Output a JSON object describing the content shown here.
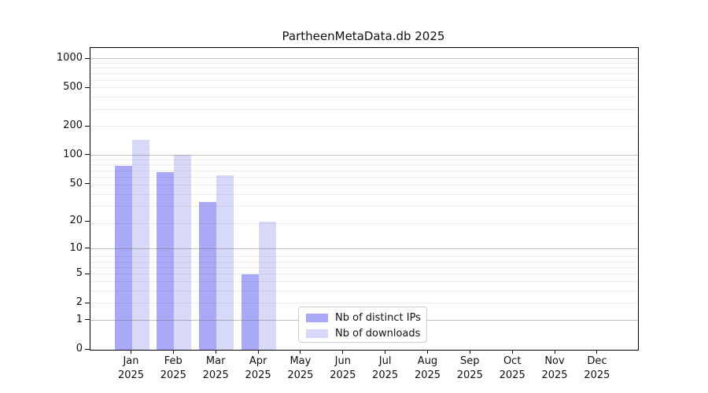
{
  "chart_data": {
    "type": "bar",
    "title": "PartheenMetaData.db 2025",
    "year_label": "2025",
    "categories": [
      "Jan",
      "Feb",
      "Mar",
      "Apr",
      "May",
      "Jun",
      "Jul",
      "Aug",
      "Sep",
      "Oct",
      "Nov",
      "Dec"
    ],
    "series": [
      {
        "name": "Nb of distinct IPs",
        "color": "#a9a9f7",
        "values": [
          78,
          67,
          32,
          5,
          0,
          0,
          0,
          0,
          0,
          0,
          0,
          0
        ]
      },
      {
        "name": "Nb of downloads",
        "color": "#d8d8f8",
        "values": [
          145,
          100,
          62,
          20,
          0,
          0,
          0,
          0,
          0,
          0,
          0,
          0
        ]
      }
    ],
    "y_ticks": [
      0,
      1,
      2,
      5,
      10,
      20,
      50,
      100,
      200,
      500,
      1000
    ],
    "y_scale": "log10(1+v)",
    "ylim": [
      0,
      1300
    ],
    "grid": "horizontal, major at 1/10/100/1000, faint log minors",
    "legend_position": "bottom-center inside plot",
    "colors": {
      "spine": "#000000",
      "major_grid": "#b5b5b5",
      "minor_grid": "#ebebeb",
      "text": "#111111",
      "background": "#ffffff"
    }
  }
}
